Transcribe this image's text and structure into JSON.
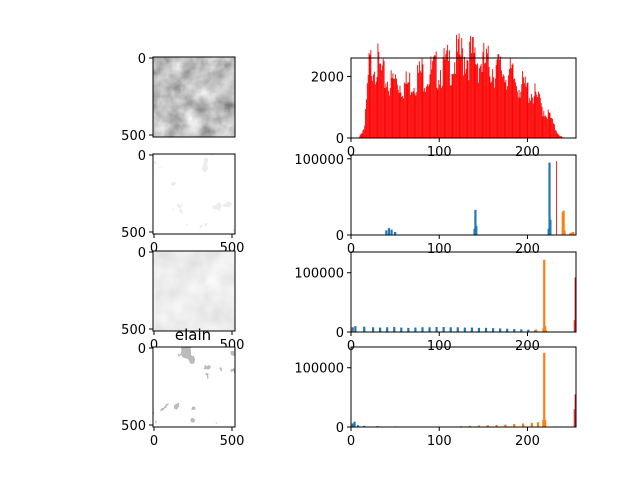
{
  "chart_data": [
    {
      "type": "image",
      "panel": "image-1",
      "title": "",
      "ytick_labels": [
        "0",
        "500"
      ],
      "xtick_labels": [],
      "image_style": "grayscale photo"
    },
    {
      "type": "histogram",
      "panel": "hist-1",
      "xlim": [
        0,
        255
      ],
      "ylim": [
        0,
        2600
      ],
      "yticks": [
        0,
        2000
      ],
      "xticks": [
        0,
        100,
        200
      ],
      "ytick_labels": [
        "0",
        "2000"
      ],
      "xtick_labels": [
        "0",
        "100",
        "200"
      ],
      "series": [
        {
          "color": "#ff0000",
          "bins_x": [
            8,
            15,
            20,
            25,
            30,
            35,
            40,
            45,
            50,
            55,
            60,
            65,
            70,
            75,
            80,
            85,
            90,
            95,
            100,
            105,
            110,
            115,
            120,
            125,
            130,
            135,
            140,
            145,
            150,
            155,
            160,
            165,
            170,
            175,
            180,
            185,
            190,
            195,
            200,
            205,
            210,
            215,
            220,
            225,
            230,
            235,
            240
          ],
          "counts": [
            0,
            300,
            1900,
            2200,
            2000,
            1700,
            1600,
            1500,
            1600,
            1500,
            1450,
            1500,
            1600,
            1700,
            1800,
            1750,
            1800,
            1850,
            1900,
            1950,
            2000,
            2100,
            2200,
            2250,
            2300,
            2250,
            2200,
            2100,
            2050,
            2000,
            1950,
            1900,
            1850,
            1800,
            1700,
            1600,
            1500,
            1400,
            1300,
            1250,
            1100,
            900,
            700,
            600,
            300,
            100,
            0
          ]
        }
      ]
    },
    {
      "type": "image",
      "panel": "image-2",
      "title": "",
      "ytick_labels": [
        "0",
        "500"
      ],
      "xtick_labels": [
        "0",
        "500"
      ],
      "image_style": "bright posterized"
    },
    {
      "type": "histogram",
      "panel": "hist-2",
      "xlim": [
        0,
        255
      ],
      "ylim": [
        0,
        105000
      ],
      "yticks": [
        0,
        100000
      ],
      "xticks": [
        0,
        100,
        200
      ],
      "ytick_labels": [
        "0",
        "100000"
      ],
      "xtick_labels": [
        "0",
        "100",
        "200"
      ],
      "series": [
        {
          "color": "#1f77b4",
          "spikes": [
            [
              40,
              6000
            ],
            [
              43,
              9000
            ],
            [
              46,
              7000
            ],
            [
              50,
              4000
            ],
            [
              140,
              8000
            ],
            [
              141,
              33000
            ],
            [
              142,
              12000
            ],
            [
              224,
              8000
            ],
            [
              225,
              95000
            ],
            [
              226,
              20000
            ]
          ]
        },
        {
          "color": "#ff7f0e",
          "spikes": [
            [
              240,
              30000
            ],
            [
              241,
              32000
            ],
            [
              242,
              6000
            ],
            [
              250,
              3000
            ],
            [
              252,
              4000
            ]
          ]
        },
        {
          "color": "#d62728",
          "spikes": [
            [
              233,
              97000
            ],
            [
              248,
              2000
            ]
          ]
        }
      ]
    },
    {
      "type": "image",
      "panel": "image-3",
      "title": "",
      "ytick_labels": [
        "0",
        "500"
      ],
      "xtick_labels": [
        "0",
        "500"
      ],
      "image_style": "very bright washed out"
    },
    {
      "type": "histogram",
      "panel": "hist-3",
      "xlim": [
        0,
        255
      ],
      "ylim": [
        0,
        135000
      ],
      "yticks": [
        0,
        100000
      ],
      "xticks": [
        0,
        100,
        200
      ],
      "ytick_labels": [
        "0",
        "100000"
      ],
      "xtick_labels": [
        "0",
        "100",
        "200"
      ],
      "series": [
        {
          "color": "#1f77b4",
          "spikes": [
            [
              2,
              8000
            ],
            [
              5,
              10000
            ],
            [
              15,
              9000
            ],
            [
              25,
              8000
            ],
            [
              33,
              7500
            ],
            [
              41,
              8000
            ],
            [
              49,
              8500
            ],
            [
              57,
              7500
            ],
            [
              65,
              7000
            ],
            [
              73,
              7500
            ],
            [
              81,
              8000
            ],
            [
              89,
              8000
            ],
            [
              97,
              8500
            ],
            [
              105,
              8500
            ],
            [
              113,
              8000
            ],
            [
              121,
              8000
            ],
            [
              129,
              7500
            ],
            [
              137,
              7500
            ],
            [
              145,
              7000
            ],
            [
              153,
              7000
            ],
            [
              161,
              6500
            ],
            [
              169,
              6000
            ],
            [
              177,
              5500
            ],
            [
              185,
              5000
            ],
            [
              193,
              4500
            ],
            [
              201,
              4000
            ],
            [
              209,
              3500
            ]
          ]
        },
        {
          "color": "#ff7f0e",
          "spikes": [
            [
              3,
              3000
            ],
            [
              210,
              4000
            ],
            [
              218,
              6000
            ],
            [
              219,
              122000
            ],
            [
              220,
              10000
            ],
            [
              221,
              3000
            ]
          ]
        },
        {
          "color": "#d62728",
          "spikes": [
            [
              254,
              92000
            ],
            [
              253,
              20000
            ]
          ]
        }
      ]
    },
    {
      "type": "image",
      "panel": "image-4",
      "title": "elain",
      "ytick_labels": [
        "0",
        "500"
      ],
      "xtick_labels": [
        "0",
        "500"
      ],
      "image_style": "thresholded black white gray"
    },
    {
      "type": "histogram",
      "panel": "hist-4",
      "xlim": [
        0,
        255
      ],
      "ylim": [
        0,
        135000
      ],
      "yticks": [
        0,
        100000
      ],
      "xticks": [
        0,
        100,
        200
      ],
      "ytick_labels": [
        "0",
        "100000"
      ],
      "xtick_labels": [
        "0",
        "100",
        "200"
      ],
      "series": [
        {
          "color": "#1f77b4",
          "spikes": [
            [
              2,
              6000
            ],
            [
              4,
              9000
            ],
            [
              8,
              3000
            ],
            [
              15,
              2000
            ],
            [
              30,
              1500
            ],
            [
              50,
              1000
            ],
            [
              80,
              800
            ],
            [
              110,
              600
            ]
          ]
        },
        {
          "color": "#ff7f0e",
          "spikes": [
            [
              125,
              1500
            ],
            [
              135,
              2000
            ],
            [
              145,
              2500
            ],
            [
              155,
              3000
            ],
            [
              165,
              3500
            ],
            [
              175,
              4000
            ],
            [
              185,
              5000
            ],
            [
              195,
              6000
            ],
            [
              205,
              7000
            ],
            [
              212,
              8000
            ],
            [
              218,
              12000
            ],
            [
              219,
              125000
            ],
            [
              220,
              12000
            ]
          ]
        },
        {
          "color": "#d62728",
          "spikes": [
            [
              254,
              55000
            ],
            [
              253,
              30000
            ]
          ]
        }
      ]
    }
  ]
}
